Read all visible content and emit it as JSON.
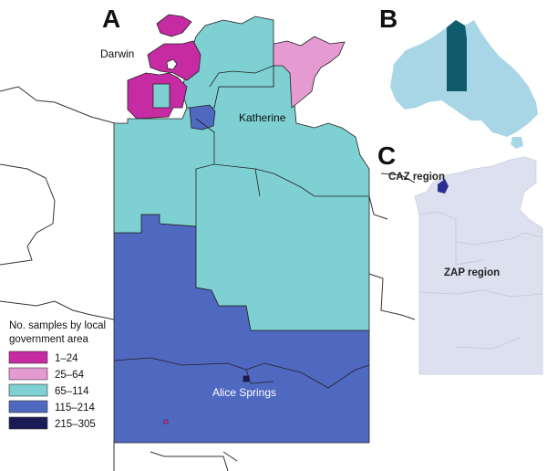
{
  "panels": {
    "a": {
      "letter": "A"
    },
    "b": {
      "letter": "B"
    },
    "c": {
      "letter": "C"
    }
  },
  "places": {
    "darwin": "Darwin",
    "katherine": "Katherine",
    "alice_springs": "Alice Springs"
  },
  "regions": {
    "caz": "CAZ region",
    "zap": "ZAP region"
  },
  "legend": {
    "title_line1": "No. samples by local",
    "title_line2": "government area",
    "items": [
      {
        "label": "1–24",
        "color": "#c62ba4"
      },
      {
        "label": "25–64",
        "color": "#e59ad2"
      },
      {
        "label": "65–114",
        "color": "#7ed0d2"
      },
      {
        "label": "115–214",
        "color": "#4f68c0"
      },
      {
        "label": "215–305",
        "color": "#1a1b56"
      }
    ]
  },
  "colors": {
    "australia_fill": "#a9d6e6",
    "highlight_nt": "#0f5a6b",
    "inset_c_fill": "#dde1ef",
    "caz_fill": "#2a2e8e"
  }
}
